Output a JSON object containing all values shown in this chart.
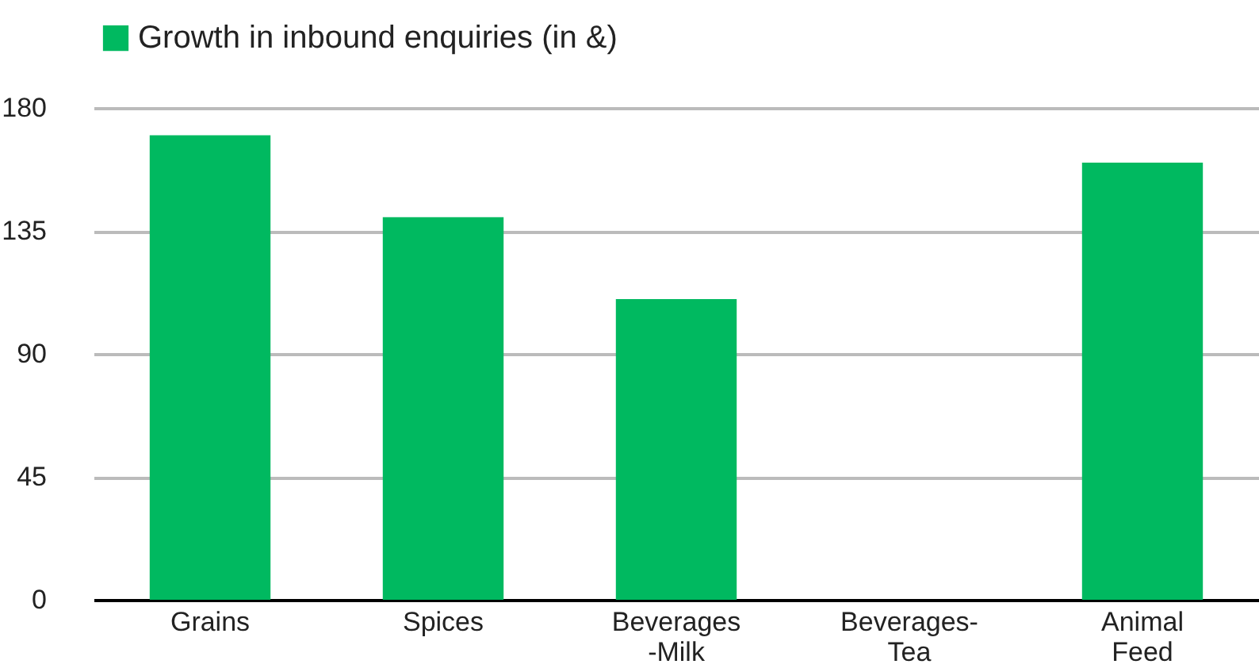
{
  "chart_data": {
    "type": "bar",
    "categories": [
      "Grains",
      "Spices",
      "Beverages\n-Milk",
      "Beverages-\nTea",
      "Animal\nFeed"
    ],
    "series": [
      {
        "name": "Growth in inbound enquiries (in &)",
        "color": "#00b960",
        "values": [
          170,
          140,
          110,
          0,
          160
        ]
      }
    ],
    "ylim": [
      0,
      180
    ],
    "yticks": [
      0,
      45,
      90,
      135,
      180
    ],
    "grid": "y",
    "legend": "top"
  }
}
